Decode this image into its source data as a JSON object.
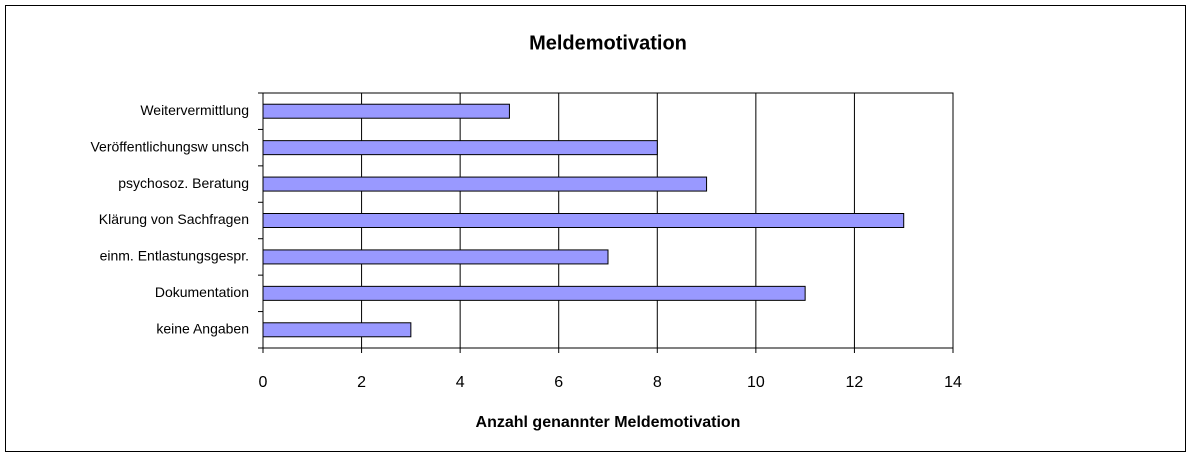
{
  "chart_data": {
    "type": "bar",
    "orientation": "horizontal",
    "title": "Meldemotivation",
    "x_label": "Anzahl genannter Meldemotivation",
    "categories": [
      "Weitervermittlung",
      "Veröffentlichungsw unsch",
      "psychosoz. Beratung",
      "Klärung von Sachfragen",
      "einm. Entlastungsgespr.",
      "Dokumentation",
      "keine Angaben"
    ],
    "values": [
      5,
      8,
      9,
      13,
      7,
      11,
      3
    ],
    "color": "#9999ff",
    "xlim": [
      0,
      14
    ],
    "xticks": [
      0,
      2,
      4,
      6,
      8,
      10,
      12,
      14
    ],
    "grid": true
  }
}
